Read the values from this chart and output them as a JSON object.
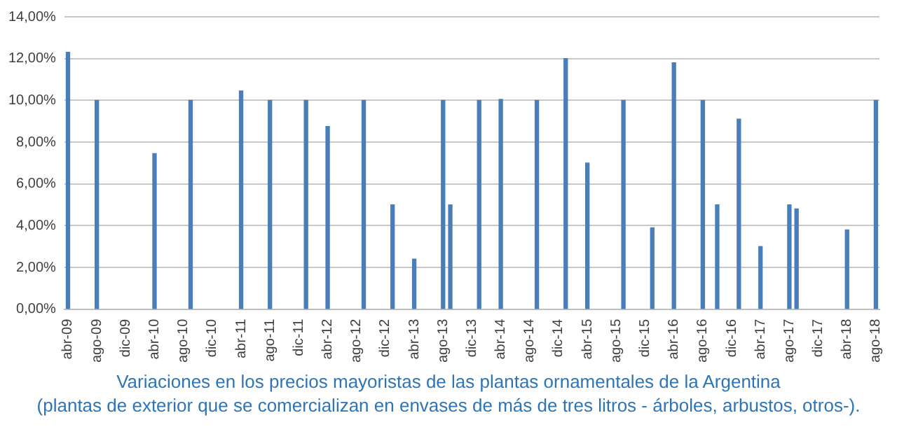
{
  "chart_data": {
    "type": "bar",
    "categories": [
      "abr-09",
      null,
      null,
      null,
      "ago-09",
      null,
      null,
      null,
      "dic-09",
      null,
      null,
      null,
      "abr-10",
      null,
      null,
      null,
      "ago-10",
      null,
      null,
      null,
      "dic-10",
      null,
      null,
      null,
      "abr-11",
      null,
      null,
      null,
      "ago-11",
      null,
      null,
      null,
      "dic-11",
      null,
      null,
      null,
      "abr-12",
      null,
      null,
      null,
      "ago-12",
      null,
      null,
      null,
      "dic-12",
      null,
      null,
      null,
      "abr-13",
      null,
      null,
      null,
      "ago-13",
      null,
      null,
      null,
      "dic-13",
      null,
      null,
      null,
      "abr-14",
      null,
      null,
      null,
      "ago-14",
      null,
      null,
      null,
      "dic-14",
      null,
      null,
      null,
      "abr-15",
      null,
      null,
      null,
      "ago-15",
      null,
      null,
      null,
      "dic-15",
      null,
      null,
      null,
      "abr-16",
      null,
      null,
      null,
      "ago-16",
      null,
      null,
      null,
      "dic-16",
      null,
      null,
      null,
      "abr-17",
      null,
      null,
      null,
      "ago-17",
      null,
      null,
      null,
      "dic-17",
      null,
      null,
      null,
      "abr-18",
      null,
      null,
      null,
      "ago-18"
    ],
    "values": [
      12.3,
      null,
      null,
      null,
      10,
      null,
      null,
      null,
      null,
      null,
      null,
      null,
      7.45,
      null,
      null,
      null,
      null,
      10,
      null,
      null,
      null,
      null,
      null,
      null,
      10.45,
      null,
      null,
      null,
      10,
      null,
      null,
      null,
      null,
      10,
      null,
      null,
      8.75,
      null,
      null,
      null,
      null,
      10,
      null,
      null,
      null,
      5,
      null,
      null,
      2.4,
      null,
      null,
      null,
      10,
      5,
      null,
      null,
      null,
      10,
      null,
      null,
      10.05,
      null,
      null,
      null,
      null,
      10,
      null,
      null,
      null,
      12,
      null,
      null,
      7,
      null,
      null,
      null,
      null,
      10,
      null,
      null,
      null,
      3.9,
      null,
      null,
      11.8,
      null,
      null,
      null,
      10,
      null,
      5,
      null,
      null,
      9.1,
      null,
      null,
      3,
      null,
      null,
      null,
      5,
      4.8,
      null,
      null,
      null,
      null,
      null,
      null,
      3.8,
      null,
      null,
      null,
      10
    ],
    "color": "#4a7ebb",
    "ylim": [
      0,
      14
    ],
    "yticks": [
      {
        "value": 0,
        "label": "0,00%"
      },
      {
        "value": 2,
        "label": "2,00%"
      },
      {
        "value": 4,
        "label": "4,00%"
      },
      {
        "value": 6,
        "label": "6,00%"
      },
      {
        "value": 8,
        "label": "8,00%"
      },
      {
        "value": 10,
        "label": "10,00%"
      },
      {
        "value": 12,
        "label": "12,00%"
      },
      {
        "value": 14,
        "label": "14,00%"
      }
    ],
    "grid": "y",
    "legend": false,
    "annotations": [
      "Variaciones en los precios mayoristas de las plantas ornamentales de la Argentina",
      "(plantas de exterior que se comercializan en envases de más de tres litros - árboles, arbustos, otros-)."
    ]
  }
}
